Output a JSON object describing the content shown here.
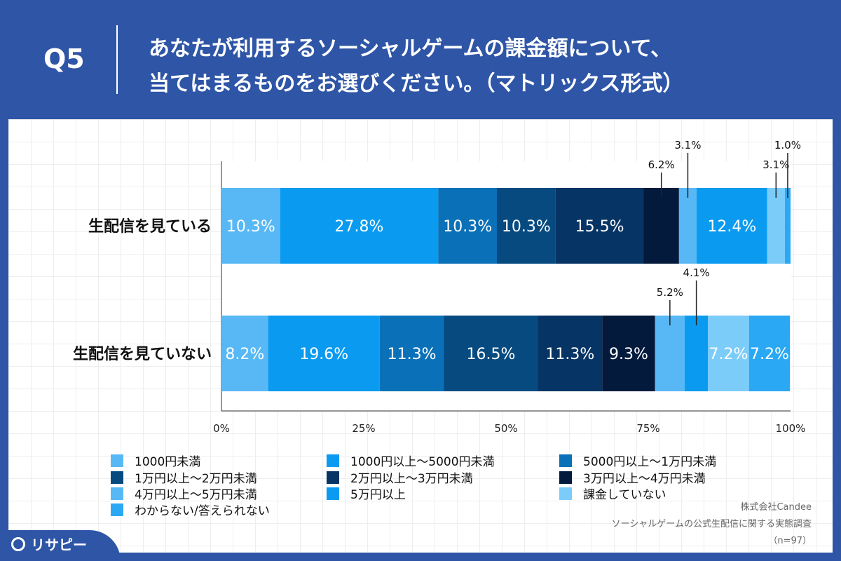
{
  "header": {
    "q_label": "Q5",
    "title_line1": "あなたが利用するソーシャルゲームの課金額について、",
    "title_line2": "当てはまるものをお選びください。（マトリックス形式）"
  },
  "chart_data": {
    "type": "bar",
    "orientation": "horizontal",
    "stacked": true,
    "categories": [
      "生配信を見ている",
      "生配信を見ていない"
    ],
    "xlim": [
      0,
      100
    ],
    "x_ticks": [
      "0%",
      "25%",
      "50%",
      "75%",
      "100%"
    ],
    "grid": false,
    "legend_position": "bottom",
    "series": [
      {
        "name": "1000円未満",
        "color": "#58b8f5",
        "values": [
          10.3,
          8.2
        ]
      },
      {
        "name": "1000円以上〜5000円未満",
        "color": "#0a9bf0",
        "values": [
          27.8,
          19.6
        ]
      },
      {
        "name": "5000円以上〜1万円未満",
        "color": "#0a70b8",
        "values": [
          10.3,
          11.3
        ]
      },
      {
        "name": "1万円以上〜2万円未満",
        "color": "#064a80",
        "values": [
          10.3,
          16.5
        ]
      },
      {
        "name": "2万円以上〜3万円未満",
        "color": "#063464",
        "values": [
          15.5,
          11.3
        ]
      },
      {
        "name": "3万円以上〜4万円未満",
        "color": "#031a3c",
        "values": [
          6.2,
          9.3
        ]
      },
      {
        "name": "4万円以上〜5万円未満",
        "color": "#58b8f5",
        "values": [
          3.1,
          5.2
        ]
      },
      {
        "name": "5万円以上",
        "color": "#0a9bf0",
        "values": [
          12.4,
          4.1
        ]
      },
      {
        "name": "課金していない",
        "color": "#7cccfa",
        "values": [
          3.1,
          7.2
        ]
      },
      {
        "name": "わからない/答えられない",
        "color": "#2aa8f4",
        "values": [
          1.0,
          7.2
        ]
      }
    ],
    "data_labels": [
      [
        "10.3%",
        "27.8%",
        "10.3%",
        "10.3%",
        "15.5%",
        "6.2%",
        "3.1%",
        "12.4%",
        "3.1%",
        "1.0%"
      ],
      [
        "8.2%",
        "19.6%",
        "11.3%",
        "16.5%",
        "11.3%",
        "9.3%",
        "5.2%",
        "4.1%",
        "7.2%",
        "7.2%"
      ]
    ]
  },
  "credit": {
    "company": "株式会社Candee",
    "survey": "ソーシャルゲームの公式生配信に関する実態調査",
    "sample": "（n=97）"
  },
  "logo": {
    "text": "リサピー"
  }
}
